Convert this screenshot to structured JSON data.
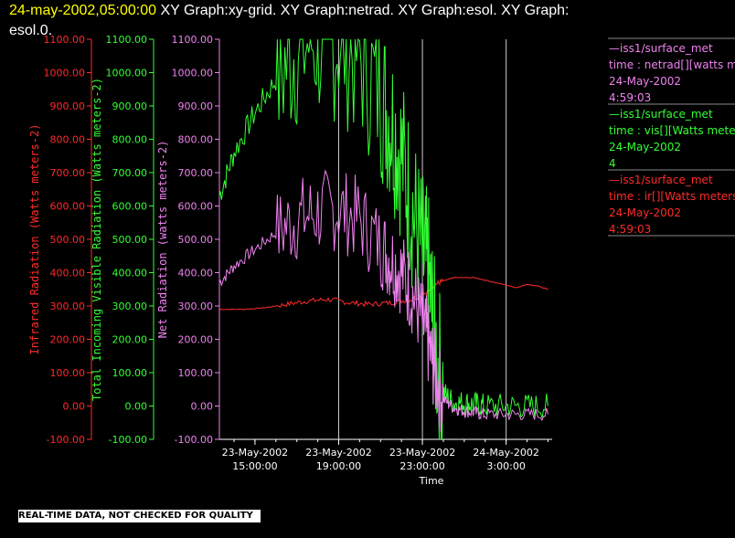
{
  "header": {
    "timestamp": "24-may-2002,05:00:00",
    "line1_rest": " XY Graph:xy-grid.  XY Graph:netrad.  XY Graph:esol.  XY Graph:",
    "line2": "esol.0."
  },
  "footer": {
    "quality_note": "REAL-TIME DATA, NOT CHECKED FOR QUALITY"
  },
  "colors": {
    "infrared": "#ff2a2a",
    "visible": "#33ff33",
    "net": "#ee82ee",
    "white": "#ffffff"
  },
  "legend": [
    {
      "line1": "—iss1/surface_met",
      "line2": "time : netrad[][watts me",
      "line3": "24-May-2002",
      "line4": "4:59:03",
      "color": "#ee82ee"
    },
    {
      "line1": "—iss1/surface_met",
      "line2": "time : vis[][Watts mete",
      "line3": "24-May-2002",
      "line4": "4",
      "color": "#33ff33"
    },
    {
      "line1": "—iss1/surface_met",
      "line2": "time : ir[][Watts meters",
      "line3": "24-May-2002",
      "line4": "4:59:03",
      "color": "#ff2a2a"
    }
  ],
  "chart_data": {
    "type": "line",
    "xlabel": "Time",
    "x_ticks": [
      {
        "line1": "23-May-2002",
        "line2": "15:00:00",
        "hour": 15
      },
      {
        "line1": "23-May-2002",
        "line2": "19:00:00",
        "hour": 19
      },
      {
        "line1": "23-May-2002",
        "line2": "23:00:00",
        "hour": 23
      },
      {
        "line1": "24-May-2002",
        "line2": "3:00:00",
        "hour": 27
      }
    ],
    "x_range_hours": [
      13.3,
      29.2
    ],
    "x_range_note_hours_since": "23-May-2002 00:00",
    "ylim": [
      -100,
      1100
    ],
    "y_ticks": [
      "-100.00",
      "0.00",
      "100.00",
      "200.00",
      "300.00",
      "400.00",
      "500.00",
      "600.00",
      "700.00",
      "800.00",
      "900.00",
      "1000.00",
      "1100.00"
    ],
    "y_tick_values": [
      -100,
      0,
      100,
      200,
      300,
      400,
      500,
      600,
      700,
      800,
      900,
      1000,
      1100
    ],
    "axes": [
      {
        "label": "Infrared Radiation (Watts meters-2)",
        "color": "#ff2a2a"
      },
      {
        "label": "Total Incoming Visible Radiation (Watts meters-2)",
        "color": "#33ff33"
      },
      {
        "label": "Net Radiation (watts meters-2)",
        "color": "#ee82ee"
      }
    ],
    "series": [
      {
        "name": "iss1/surface_met time : ir[][Watts meters-2]",
        "color": "#ff2a2a",
        "x": [
          13.3,
          14.5,
          15.5,
          16.5,
          17.5,
          18.5,
          19.5,
          20.5,
          21.5,
          22.5,
          23.3,
          23.6,
          24.0,
          24.5,
          25.5,
          26.5,
          27.5,
          28.0,
          28.5,
          29.0
        ],
        "y": [
          290,
          290,
          295,
          305,
          315,
          320,
          310,
          305,
          310,
          320,
          345,
          365,
          375,
          385,
          385,
          370,
          355,
          365,
          360,
          350
        ]
      },
      {
        "name": "iss1/surface_met time : vis[][Watts meters-2]",
        "color": "#33ff33",
        "x": [
          13.3,
          14.0,
          15.0,
          16.0,
          17.0,
          18.0,
          19.0,
          20.0,
          21.0,
          21.5,
          22.0,
          22.5,
          23.0,
          23.3,
          23.6,
          24.0,
          24.5,
          25.0,
          25.5,
          26.0,
          27.0,
          28.0,
          29.0
        ],
        "y": [
          630,
          760,
          880,
          980,
          1080,
          1100,
          1100,
          1050,
          930,
          860,
          750,
          600,
          450,
          380,
          180,
          40,
          10,
          10,
          5,
          0,
          0,
          0,
          0
        ]
      },
      {
        "name": "iss1/surface_met time : netrad[][watts meters-2]",
        "color": "#ee82ee",
        "x": [
          13.3,
          14.0,
          15.0,
          16.0,
          17.0,
          18.0,
          19.0,
          20.0,
          21.0,
          21.5,
          22.0,
          22.5,
          23.0,
          23.3,
          23.6,
          24.0,
          24.5,
          25.0,
          25.5,
          26.0,
          27.0,
          28.0,
          29.0
        ],
        "y": [
          370,
          420,
          470,
          520,
          560,
          580,
          590,
          560,
          480,
          440,
          400,
          340,
          250,
          180,
          100,
          20,
          -5,
          -15,
          -20,
          -25,
          -25,
          -25,
          -25
        ]
      }
    ]
  }
}
